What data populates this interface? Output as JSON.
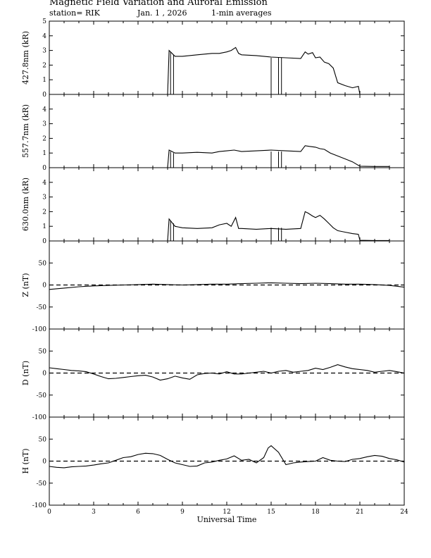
{
  "header": {
    "title": "Magnetic Field Variation and Auroral Emission",
    "station": "station= RIK",
    "date": "Jan. 1  , 2026",
    "averaging": "1-min averages"
  },
  "chart_data": [
    {
      "type": "line",
      "ylabel": "427.8nm (kR)",
      "xlim": [
        0,
        24
      ],
      "ylim": [
        0,
        5
      ],
      "yticks": [
        "0",
        "1",
        "2",
        "3",
        "4",
        "5"
      ],
      "series": [
        {
          "x": [
            8.0,
            8.1,
            8.5,
            9.0,
            10.0,
            11.0,
            11.5,
            12.0,
            12.3,
            12.6,
            12.8,
            13.0,
            14.0,
            15.0,
            16.0,
            17.0,
            17.3,
            17.5,
            17.8,
            18.0,
            18.3,
            18.6,
            18.9,
            19.2,
            19.5,
            20.0,
            20.5,
            20.9,
            21.0
          ],
          "y": [
            0.0,
            3.0,
            2.6,
            2.6,
            2.7,
            2.8,
            2.8,
            2.9,
            3.0,
            3.2,
            2.8,
            2.7,
            2.65,
            2.55,
            2.5,
            2.45,
            2.9,
            2.75,
            2.85,
            2.5,
            2.55,
            2.2,
            2.1,
            1.8,
            0.8,
            0.6,
            0.45,
            0.55,
            0.0
          ]
        }
      ],
      "spikes": [
        {
          "x": 8.2,
          "y": 2.9
        },
        {
          "x": 8.4,
          "y": 2.7
        },
        {
          "x": 15.0,
          "y": 2.5
        },
        {
          "x": 15.5,
          "y": 2.5
        },
        {
          "x": 15.7,
          "y": 2.5
        }
      ]
    },
    {
      "type": "line",
      "ylabel": "557.7nm (kR)",
      "xlim": [
        0,
        24
      ],
      "ylim": [
        0,
        5
      ],
      "yticks": [
        "0",
        "1",
        "2",
        "3",
        "4"
      ],
      "series": [
        {
          "x": [
            8.0,
            8.1,
            8.5,
            9.0,
            10.0,
            11.0,
            11.5,
            12.0,
            12.5,
            13.0,
            14.0,
            15.0,
            16.0,
            17.0,
            17.3,
            17.6,
            18.0,
            18.3,
            18.6,
            19.0,
            19.5,
            20.0,
            20.5,
            21.0,
            22.0,
            23.0
          ],
          "y": [
            0.0,
            1.2,
            1.0,
            1.0,
            1.05,
            1.0,
            1.1,
            1.15,
            1.2,
            1.1,
            1.15,
            1.2,
            1.15,
            1.1,
            1.5,
            1.45,
            1.4,
            1.3,
            1.25,
            1.0,
            0.8,
            0.6,
            0.4,
            0.1,
            0.08,
            0.08
          ]
        }
      ],
      "spikes": [
        {
          "x": 8.2,
          "y": 1.1
        },
        {
          "x": 8.4,
          "y": 1.0
        },
        {
          "x": 15.0,
          "y": 1.1
        },
        {
          "x": 15.5,
          "y": 1.1
        },
        {
          "x": 15.7,
          "y": 1.1
        }
      ]
    },
    {
      "type": "line",
      "ylabel": "630.0nm (kR)",
      "xlim": [
        0,
        24
      ],
      "ylim": [
        0,
        5
      ],
      "yticks": [
        "0",
        "1",
        "2",
        "3",
        "4"
      ],
      "series": [
        {
          "x": [
            8.0,
            8.1,
            8.5,
            9.0,
            10.0,
            11.0,
            11.5,
            12.0,
            12.3,
            12.6,
            12.8,
            13.0,
            14.0,
            15.0,
            16.0,
            17.0,
            17.3,
            17.5,
            17.8,
            18.0,
            18.3,
            18.6,
            18.9,
            19.2,
            19.5,
            20.0,
            20.5,
            20.9,
            21.0,
            22.0,
            23.0
          ],
          "y": [
            0.0,
            1.5,
            1.0,
            0.9,
            0.85,
            0.9,
            1.1,
            1.2,
            1.0,
            1.6,
            0.85,
            0.85,
            0.8,
            0.85,
            0.8,
            0.85,
            2.0,
            1.9,
            1.7,
            1.6,
            1.75,
            1.5,
            1.2,
            0.9,
            0.7,
            0.6,
            0.5,
            0.45,
            0.05,
            0.03,
            0.03
          ]
        }
      ],
      "spikes": [
        {
          "x": 8.2,
          "y": 1.4
        },
        {
          "x": 8.4,
          "y": 1.2
        },
        {
          "x": 15.0,
          "y": 0.9
        },
        {
          "x": 15.5,
          "y": 0.9
        },
        {
          "x": 15.7,
          "y": 0.9
        }
      ]
    },
    {
      "type": "line",
      "ylabel": "Z (nT)",
      "xlim": [
        0,
        24
      ],
      "ylim": [
        -100,
        100
      ],
      "yticks": [
        "-100",
        "-50",
        "0",
        "50"
      ],
      "zero_line": "dashed",
      "series": [
        {
          "x": [
            0,
            1,
            2,
            3,
            4,
            5,
            6,
            7,
            8,
            9,
            10,
            11,
            12,
            13,
            14,
            15,
            16,
            17,
            18,
            19,
            20,
            21,
            22,
            23,
            24
          ],
          "y": [
            -10,
            -7,
            -4,
            -2,
            -1,
            0,
            1,
            2,
            1,
            0,
            1,
            2,
            2,
            3,
            4,
            5,
            4,
            3,
            4,
            3,
            2,
            2,
            1,
            -1,
            -5
          ]
        }
      ]
    },
    {
      "type": "line",
      "ylabel": "D (nT)",
      "xlim": [
        0,
        24
      ],
      "ylim": [
        -100,
        100
      ],
      "yticks": [
        "-100",
        "-50",
        "0",
        "50"
      ],
      "zero_line": "dashed",
      "series": [
        {
          "x": [
            0,
            0.5,
            1,
            1.5,
            2,
            2.5,
            3,
            3.5,
            4,
            4.5,
            5,
            5.5,
            6,
            6.5,
            7,
            7.5,
            8,
            8.5,
            9,
            9.5,
            10,
            10.5,
            11,
            11.5,
            12,
            12.5,
            13,
            13.5,
            14,
            14.5,
            15,
            15.5,
            16,
            16.5,
            17,
            17.5,
            18,
            18.5,
            19,
            19.5,
            20,
            20.5,
            21,
            21.5,
            22,
            22.5,
            23,
            23.5,
            24
          ],
          "y": [
            12,
            10,
            8,
            6,
            5,
            3,
            -2,
            -8,
            -13,
            -12,
            -10,
            -8,
            -6,
            -5,
            -9,
            -16,
            -13,
            -7,
            -11,
            -14,
            -4,
            -1,
            0,
            -2,
            3,
            -2,
            -2,
            0,
            2,
            4,
            0,
            4,
            6,
            2,
            4,
            6,
            11,
            8,
            13,
            19,
            14,
            10,
            8,
            6,
            2,
            4,
            6,
            3,
            0
          ]
        }
      ]
    },
    {
      "type": "line",
      "ylabel": "H (nT)",
      "xlim": [
        0,
        24
      ],
      "ylim": [
        -100,
        100
      ],
      "yticks": [
        "-100",
        "-50",
        "0",
        "50"
      ],
      "zero_line": "dashed",
      "series": [
        {
          "x": [
            0,
            0.5,
            1,
            1.5,
            2,
            2.5,
            3,
            3.5,
            4,
            4.5,
            5,
            5.5,
            6,
            6.5,
            7,
            7.5,
            8,
            8.5,
            9,
            9.5,
            10,
            10.5,
            11,
            11.5,
            12,
            12.5,
            13,
            13.5,
            14,
            14.5,
            14.8,
            15,
            15.5,
            16,
            16.5,
            17,
            17.5,
            18,
            18.5,
            19,
            19.5,
            20,
            20.5,
            21,
            21.5,
            22,
            22.5,
            23,
            23.5,
            24
          ],
          "y": [
            -12,
            -14,
            -15,
            -13,
            -12,
            -11,
            -9,
            -6,
            -4,
            2,
            8,
            10,
            15,
            18,
            17,
            13,
            4,
            -4,
            -8,
            -12,
            -11,
            -4,
            -2,
            2,
            5,
            12,
            2,
            4,
            -4,
            8,
            30,
            35,
            20,
            -8,
            -4,
            -2,
            -1,
            0,
            8,
            2,
            0,
            -1,
            4,
            6,
            10,
            13,
            11,
            6,
            3,
            -2
          ]
        }
      ]
    }
  ],
  "xaxis": {
    "label": "Universal Time",
    "ticks": [
      "0",
      "3",
      "6",
      "9",
      "12",
      "15",
      "18",
      "21",
      "24"
    ]
  }
}
